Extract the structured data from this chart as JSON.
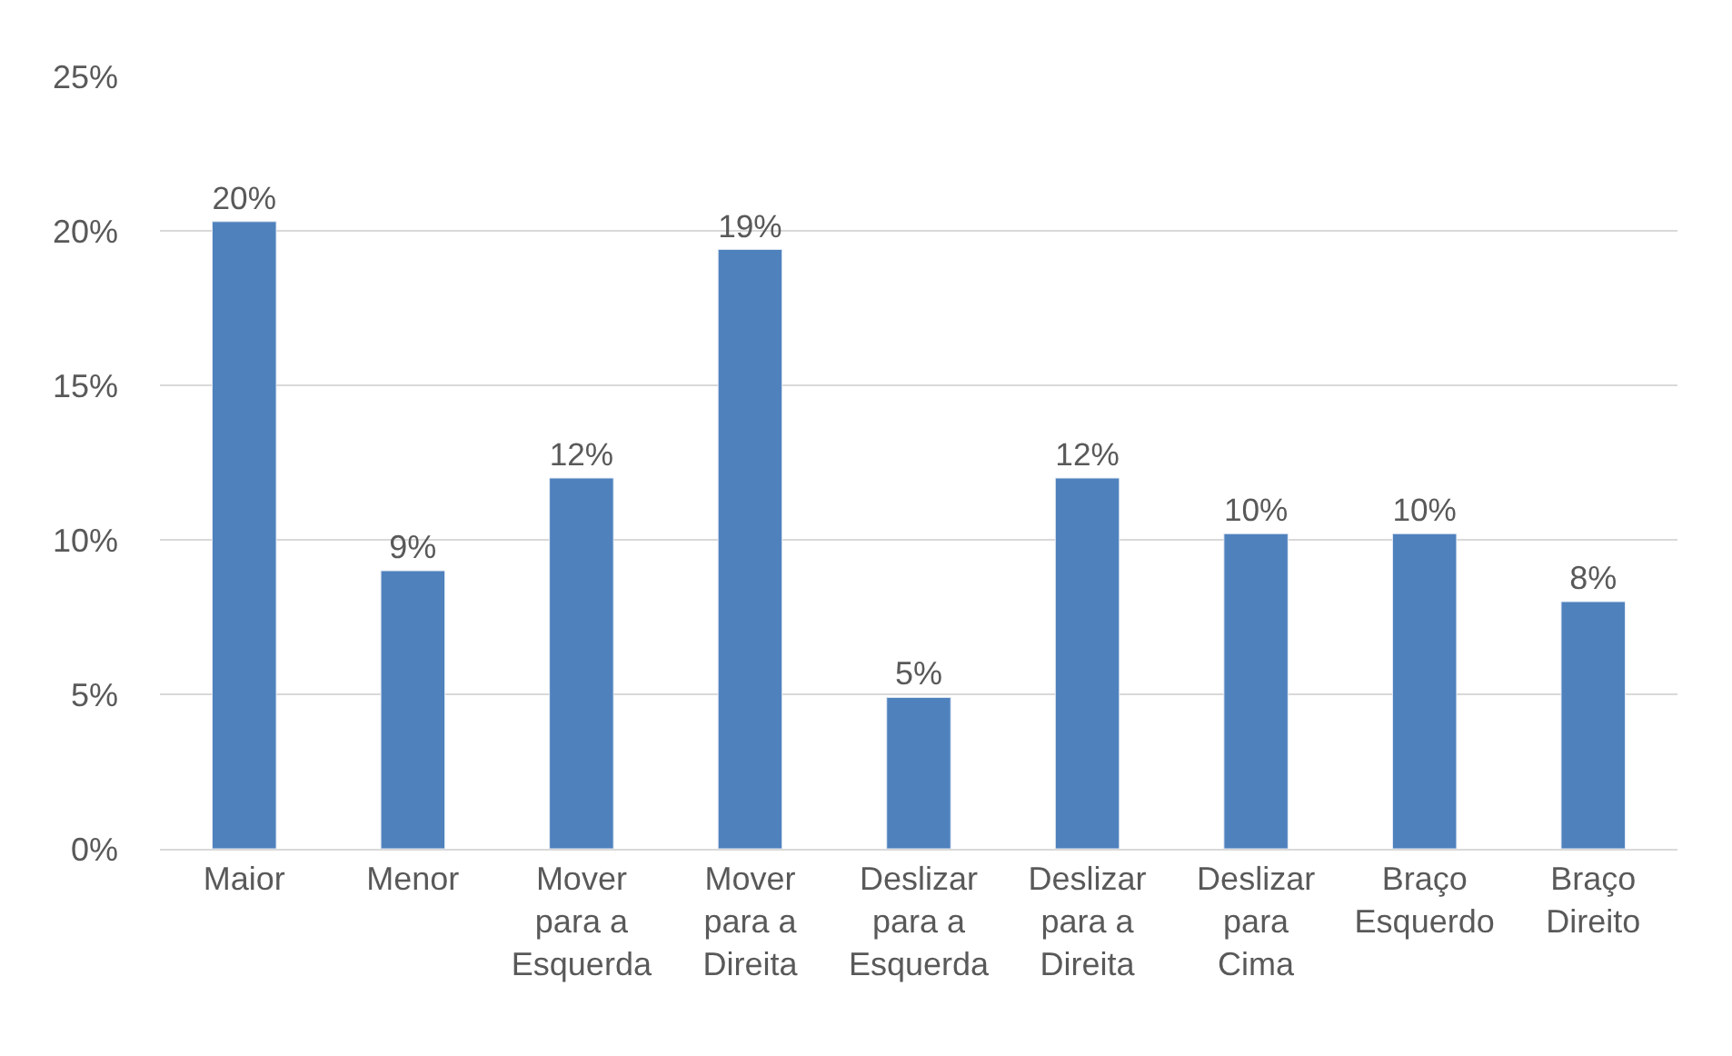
{
  "chart_data": {
    "type": "bar",
    "categories": [
      "Maior",
      "Menor",
      "Mover\npara a\nEsquerda",
      "Mover\npara a\nDireita",
      "Deslizar\npara a\nEsquerda",
      "Deslizar\npara a\nDireita",
      "Deslizar\npara\nCima",
      "Braço\nEsquerdo",
      "Braço\nDireito"
    ],
    "values": [
      20.3,
      9.0,
      12.0,
      19.4,
      4.9,
      12.0,
      10.2,
      10.2,
      8.0
    ],
    "value_labels": [
      "20%",
      "9%",
      "12%",
      "19%",
      "5%",
      "12%",
      "10%",
      "10%",
      "8%"
    ],
    "color": "#4f81bd",
    "ylim": [
      0,
      25
    ],
    "yticks": [
      {
        "value": 0,
        "label": "0%"
      },
      {
        "value": 5,
        "label": "5%"
      },
      {
        "value": 10,
        "label": "10%"
      },
      {
        "value": 15,
        "label": "15%"
      },
      {
        "value": 20,
        "label": "20%"
      },
      {
        "value": 25,
        "label": "25%"
      }
    ],
    "grid": "y"
  }
}
